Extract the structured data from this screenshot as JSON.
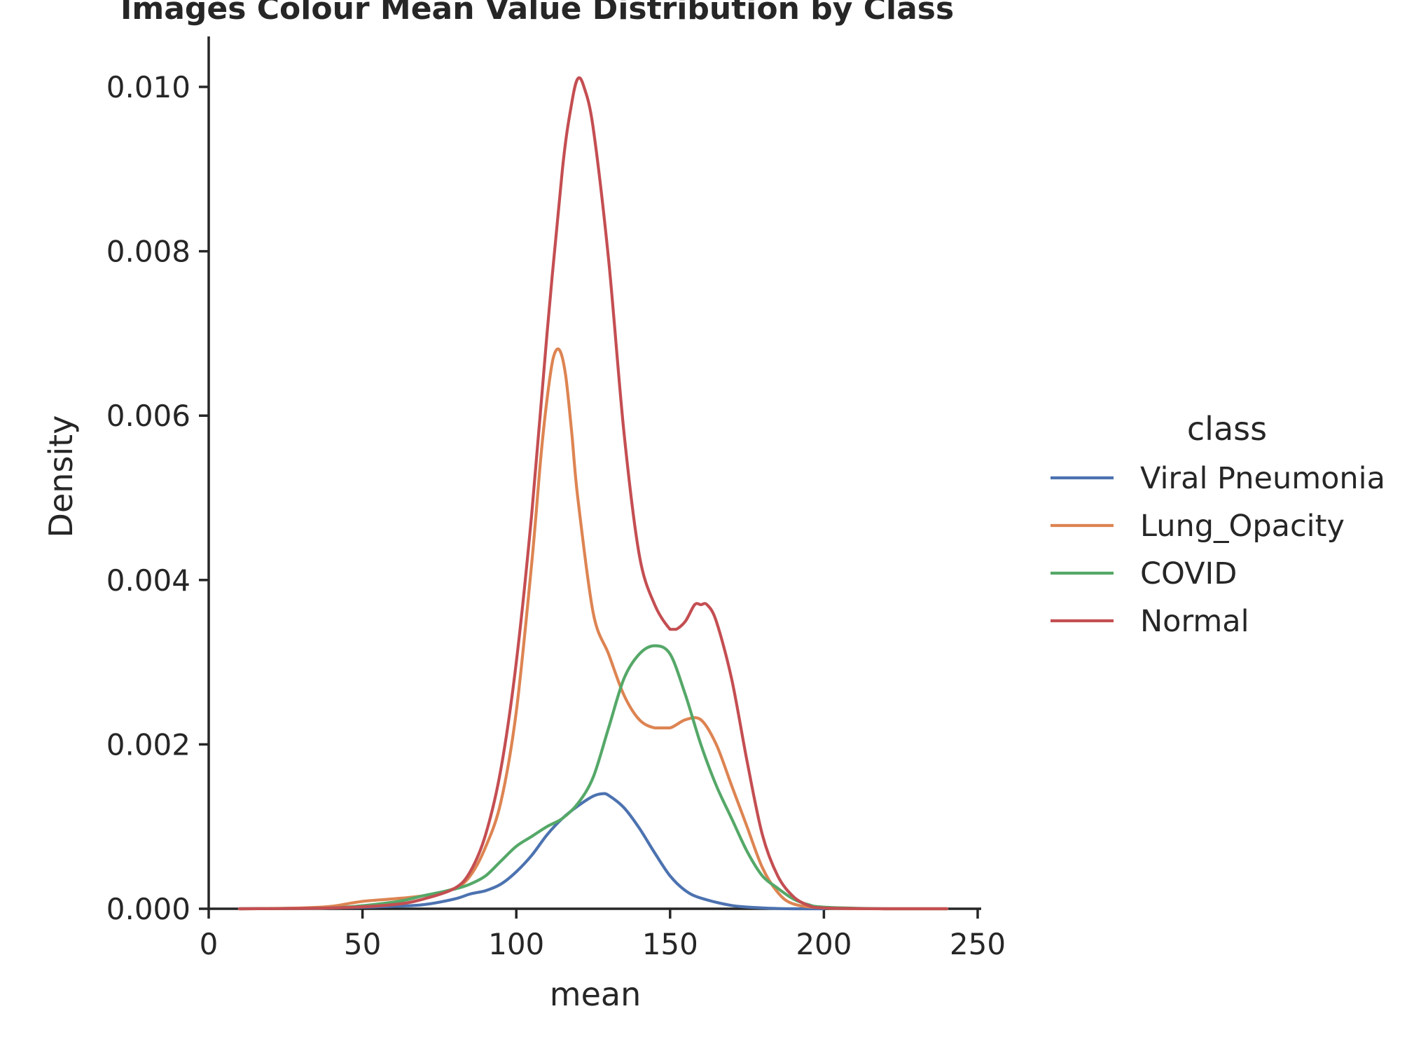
{
  "chart_data": {
    "type": "line",
    "title": "Images Colour Mean Value Distribution by Class",
    "xlabel": "mean",
    "ylabel": "Density",
    "xlim": [
      0,
      250
    ],
    "ylim": [
      0,
      0.0105
    ],
    "x_ticks": [
      0,
      50,
      100,
      150,
      200,
      250
    ],
    "y_ticks": [
      0.0,
      0.002,
      0.004,
      0.006,
      0.008,
      0.01
    ],
    "x_tick_labels": [
      "0",
      "50",
      "100",
      "150",
      "200",
      "250"
    ],
    "y_tick_labels": [
      "0.000",
      "0.002",
      "0.004",
      "0.006",
      "0.008",
      "0.010"
    ],
    "grid": false,
    "legend": {
      "title": "class",
      "position": "right"
    },
    "series": [
      {
        "name": "Viral Pneumonia",
        "color": "#4c72b0",
        "x": [
          10,
          40,
          60,
          70,
          80,
          85,
          90,
          95,
          100,
          105,
          110,
          115,
          120,
          125,
          128,
          130,
          135,
          140,
          145,
          150,
          155,
          160,
          170,
          180,
          190,
          200
        ],
        "y": [
          0,
          1e-05,
          3e-05,
          5e-05,
          0.00012,
          0.00018,
          0.00022,
          0.0003,
          0.00045,
          0.00065,
          0.0009,
          0.0011,
          0.00125,
          0.00137,
          0.0014,
          0.00138,
          0.00123,
          0.00098,
          0.00068,
          0.0004,
          0.00022,
          0.00013,
          4e-05,
          1e-05,
          0,
          0
        ]
      },
      {
        "name": "Lung_Opacity",
        "color": "#dd8452",
        "x": [
          10,
          30,
          40,
          50,
          60,
          70,
          80,
          85,
          90,
          95,
          100,
          105,
          108,
          110,
          112,
          114,
          116,
          118,
          120,
          125,
          130,
          135,
          140,
          145,
          150,
          155,
          160,
          165,
          170,
          175,
          180,
          185,
          190,
          200,
          220,
          240
        ],
        "y": [
          0,
          1e-05,
          3e-05,
          9e-05,
          0.00012,
          0.00016,
          0.00025,
          0.0004,
          0.00075,
          0.0013,
          0.0024,
          0.0042,
          0.0055,
          0.0062,
          0.0067,
          0.0068,
          0.0065,
          0.0058,
          0.005,
          0.0036,
          0.0031,
          0.0026,
          0.0023,
          0.0022,
          0.0022,
          0.0023,
          0.0023,
          0.002,
          0.0015,
          0.001,
          0.0005,
          0.0002,
          6e-05,
          1e-05,
          0,
          0
        ]
      },
      {
        "name": "COVID",
        "color": "#55a868",
        "x": [
          10,
          40,
          60,
          70,
          80,
          85,
          90,
          95,
          100,
          105,
          110,
          115,
          120,
          125,
          130,
          135,
          140,
          145,
          150,
          155,
          160,
          165,
          170,
          175,
          180,
          185,
          190,
          195,
          200,
          220,
          240
        ],
        "y": [
          0,
          1e-05,
          8e-05,
          0.00016,
          0.00024,
          0.0003,
          0.0004,
          0.00058,
          0.00076,
          0.00088,
          0.001,
          0.0011,
          0.00128,
          0.0016,
          0.0022,
          0.0028,
          0.0031,
          0.0032,
          0.0031,
          0.0026,
          0.002,
          0.0015,
          0.0011,
          0.0007,
          0.0004,
          0.00025,
          0.00012,
          5e-05,
          2e-05,
          0,
          0
        ]
      },
      {
        "name": "Normal",
        "color": "#c44e52",
        "x": [
          10,
          40,
          60,
          70,
          80,
          85,
          90,
          95,
          100,
          105,
          110,
          115,
          118,
          120,
          122,
          125,
          130,
          135,
          140,
          145,
          150,
          152,
          155,
          158,
          160,
          162,
          165,
          170,
          175,
          180,
          185,
          190,
          195,
          200,
          220,
          240
        ],
        "y": [
          0,
          1e-05,
          5e-05,
          0.00012,
          0.00025,
          0.00045,
          0.0009,
          0.0017,
          0.003,
          0.0048,
          0.007,
          0.009,
          0.0098,
          0.0101,
          0.01,
          0.0095,
          0.0079,
          0.0058,
          0.0043,
          0.0037,
          0.0034,
          0.0034,
          0.0035,
          0.0037,
          0.0037,
          0.0037,
          0.0035,
          0.0028,
          0.0018,
          0.0009,
          0.0004,
          0.00015,
          4e-05,
          1e-05,
          0,
          0
        ]
      }
    ]
  }
}
